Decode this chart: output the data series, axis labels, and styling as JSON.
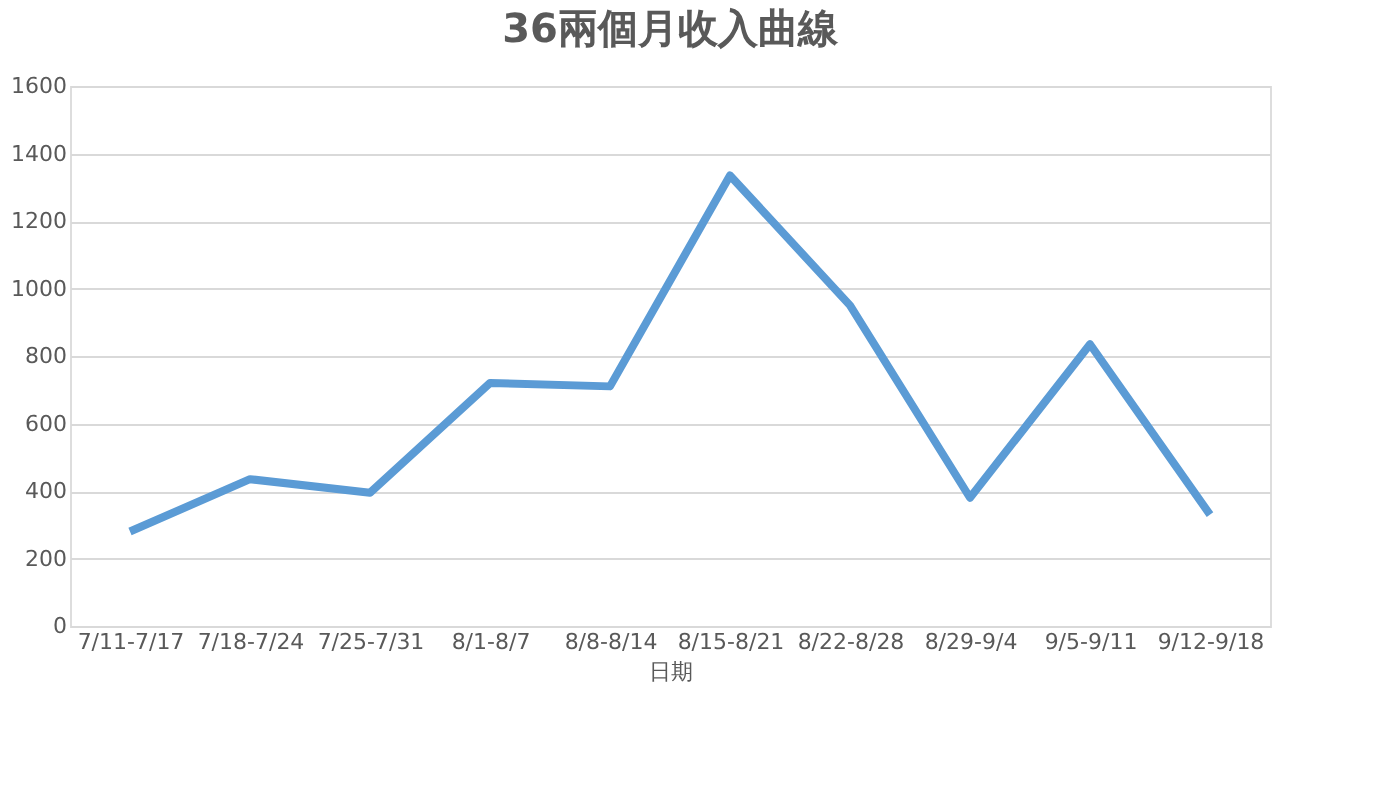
{
  "chart_data": {
    "type": "line",
    "title": "36兩個月收入曲線",
    "xlabel": "日期",
    "categories": [
      "7/11-7/17",
      "7/18-7/24",
      "7/25-7/31",
      "8/1-8/7",
      "8/8-8/14",
      "8/15-8/21",
      "8/22-8/28",
      "8/29-9/4",
      "9/5-9/11",
      "9/12-9/18"
    ],
    "series": [
      {
        "color": "#5b9bd5",
        "values": [
          280,
          435,
          395,
          720,
          710,
          1335,
          950,
          380,
          835,
          330
        ]
      }
    ],
    "ylim": [
      0,
      1600
    ],
    "yticks": [
      0,
      200,
      400,
      600,
      800,
      1000,
      1200,
      1400,
      1600
    ],
    "grid": "y",
    "legend": false,
    "marker": "none",
    "line_style": "solid"
  }
}
